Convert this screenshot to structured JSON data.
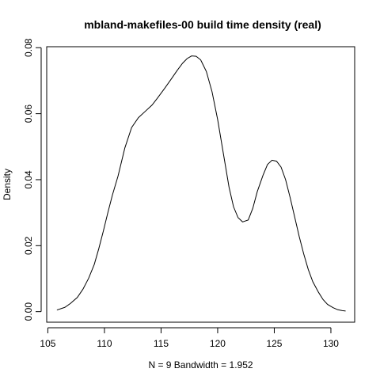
{
  "chart_data": {
    "type": "line",
    "title": "mbland-makefiles-00 build time density (real)",
    "xlabel": "N = 9   Bandwidth = 1.952",
    "ylabel": "Density",
    "xlim": [
      104.9,
      132.1
    ],
    "ylim": [
      -0.0032,
      0.0803
    ],
    "x_ticks": [
      105,
      110,
      115,
      120,
      125,
      130
    ],
    "y_ticks": [
      0.0,
      0.02,
      0.04,
      0.06,
      0.08
    ],
    "x_tick_labels": [
      "105",
      "110",
      "115",
      "120",
      "125",
      "130"
    ],
    "y_tick_labels": [
      "0.00",
      "0.02",
      "0.04",
      "0.06",
      "0.08"
    ],
    "grid": false,
    "legend": "none",
    "series": [
      {
        "x": [
          105.8,
          106.5,
          107.0,
          107.6,
          108.1,
          108.6,
          109.1,
          109.5,
          109.9,
          110.3,
          110.7,
          111.2,
          111.8,
          112.4,
          113.0,
          113.6,
          114.2,
          114.7,
          115.3,
          115.9,
          116.4,
          116.9,
          117.3,
          117.7,
          118.1,
          118.5,
          119.0,
          119.5,
          120.0,
          120.5,
          121.0,
          121.4,
          121.8,
          122.2,
          122.7,
          123.1,
          123.5,
          124.0,
          124.4,
          124.8,
          125.2,
          125.6,
          126.0,
          126.4,
          126.8,
          127.2,
          127.6,
          128.0,
          128.4,
          128.9,
          129.3,
          129.7,
          130.2,
          130.6,
          131.0,
          131.3
        ],
        "y": [
          0.0005,
          0.0013,
          0.0025,
          0.0043,
          0.0068,
          0.0101,
          0.0143,
          0.0191,
          0.0244,
          0.03,
          0.0353,
          0.0411,
          0.0496,
          0.0558,
          0.0588,
          0.0607,
          0.0626,
          0.0648,
          0.0676,
          0.0705,
          0.073,
          0.0753,
          0.0767,
          0.0775,
          0.0774,
          0.0763,
          0.0728,
          0.0667,
          0.0582,
          0.048,
          0.0378,
          0.0318,
          0.0285,
          0.0272,
          0.0278,
          0.0313,
          0.0364,
          0.0413,
          0.0446,
          0.0459,
          0.0456,
          0.0438,
          0.04,
          0.0346,
          0.0287,
          0.0228,
          0.0175,
          0.0128,
          0.0091,
          0.0059,
          0.0037,
          0.0022,
          0.0012,
          0.0006,
          0.0003,
          0.0002
        ]
      }
    ]
  }
}
